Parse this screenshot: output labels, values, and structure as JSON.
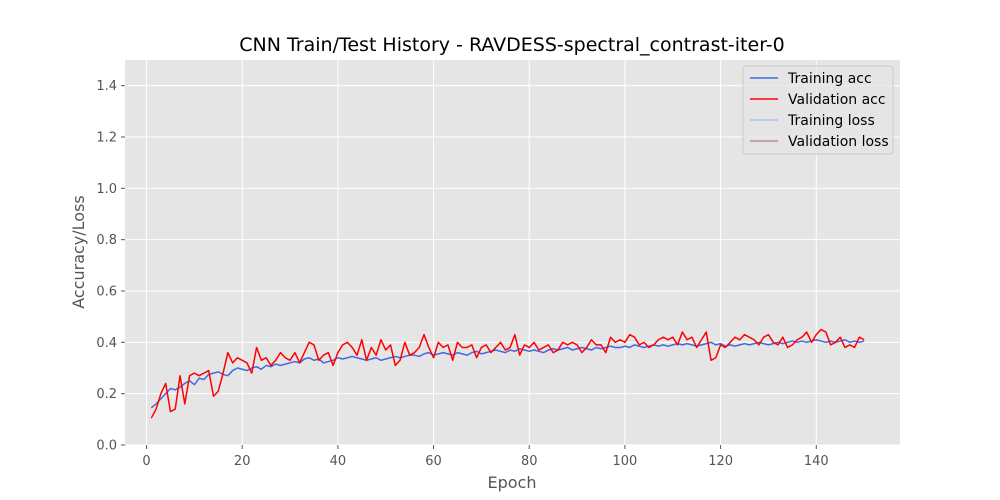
{
  "chart_data": {
    "type": "line",
    "title": "CNN Train/Test History -  RAVDESS-spectral_contrast-iter-0",
    "xlabel": "Epoch",
    "ylabel": "Accuracy/Loss",
    "xlim": [
      -4.5,
      157.5
    ],
    "ylim": [
      0.0,
      1.5
    ],
    "x_ticks": [
      0,
      20,
      40,
      60,
      80,
      100,
      120,
      140
    ],
    "y_ticks": [
      0.0,
      0.2,
      0.4,
      0.6,
      0.8,
      1.0,
      1.2,
      1.4
    ],
    "x_tick_labels": [
      "0",
      "20",
      "40",
      "60",
      "80",
      "100",
      "120",
      "140"
    ],
    "y_tick_labels": [
      "0.0",
      "0.2",
      "0.4",
      "0.6",
      "0.8",
      "1.0",
      "1.2",
      "1.4"
    ],
    "grid": true,
    "legend_position": "top-right",
    "background": "#e5e5e5",
    "x_start": 1,
    "series": [
      {
        "name": "Training acc",
        "color": "#4169e1",
        "values": [
          0.145,
          0.16,
          0.18,
          0.2,
          0.22,
          0.215,
          0.225,
          0.24,
          0.25,
          0.235,
          0.26,
          0.255,
          0.275,
          0.28,
          0.285,
          0.275,
          0.27,
          0.29,
          0.3,
          0.295,
          0.29,
          0.3,
          0.305,
          0.295,
          0.31,
          0.305,
          0.315,
          0.31,
          0.315,
          0.32,
          0.325,
          0.32,
          0.335,
          0.34,
          0.33,
          0.335,
          0.32,
          0.325,
          0.33,
          0.34,
          0.335,
          0.34,
          0.345,
          0.34,
          0.335,
          0.33,
          0.335,
          0.34,
          0.33,
          0.335,
          0.34,
          0.345,
          0.34,
          0.345,
          0.35,
          0.35,
          0.345,
          0.355,
          0.36,
          0.35,
          0.355,
          0.36,
          0.355,
          0.35,
          0.36,
          0.355,
          0.35,
          0.36,
          0.365,
          0.355,
          0.36,
          0.365,
          0.37,
          0.365,
          0.36,
          0.37,
          0.365,
          0.375,
          0.37,
          0.365,
          0.37,
          0.365,
          0.36,
          0.37,
          0.375,
          0.37,
          0.375,
          0.38,
          0.37,
          0.375,
          0.38,
          0.375,
          0.37,
          0.38,
          0.375,
          0.38,
          0.385,
          0.38,
          0.38,
          0.385,
          0.38,
          0.39,
          0.385,
          0.38,
          0.385,
          0.39,
          0.385,
          0.39,
          0.385,
          0.39,
          0.395,
          0.39,
          0.395,
          0.39,
          0.385,
          0.39,
          0.395,
          0.4,
          0.39,
          0.395,
          0.385,
          0.39,
          0.385,
          0.39,
          0.395,
          0.39,
          0.395,
          0.4,
          0.395,
          0.39,
          0.395,
          0.4,
          0.395,
          0.4,
          0.405,
          0.4,
          0.405,
          0.4,
          0.405,
          0.41,
          0.405,
          0.4,
          0.405,
          0.4,
          0.405,
          0.41,
          0.4,
          0.405,
          0.4,
          0.405
        ]
      },
      {
        "name": "Validation acc",
        "color": "#ff0000",
        "values": [
          0.105,
          0.14,
          0.2,
          0.24,
          0.13,
          0.14,
          0.27,
          0.16,
          0.27,
          0.28,
          0.27,
          0.28,
          0.29,
          0.19,
          0.21,
          0.28,
          0.36,
          0.32,
          0.34,
          0.33,
          0.32,
          0.28,
          0.38,
          0.33,
          0.34,
          0.31,
          0.33,
          0.36,
          0.34,
          0.33,
          0.36,
          0.32,
          0.36,
          0.4,
          0.39,
          0.33,
          0.35,
          0.36,
          0.31,
          0.36,
          0.39,
          0.4,
          0.38,
          0.35,
          0.41,
          0.33,
          0.38,
          0.35,
          0.41,
          0.37,
          0.39,
          0.31,
          0.33,
          0.4,
          0.35,
          0.36,
          0.38,
          0.43,
          0.38,
          0.34,
          0.4,
          0.38,
          0.39,
          0.33,
          0.4,
          0.38,
          0.38,
          0.39,
          0.34,
          0.38,
          0.39,
          0.36,
          0.38,
          0.4,
          0.37,
          0.38,
          0.43,
          0.35,
          0.39,
          0.38,
          0.4,
          0.37,
          0.38,
          0.39,
          0.36,
          0.37,
          0.4,
          0.39,
          0.4,
          0.39,
          0.36,
          0.38,
          0.41,
          0.39,
          0.39,
          0.36,
          0.42,
          0.4,
          0.41,
          0.4,
          0.43,
          0.42,
          0.39,
          0.4,
          0.38,
          0.39,
          0.41,
          0.42,
          0.41,
          0.42,
          0.39,
          0.44,
          0.41,
          0.42,
          0.38,
          0.41,
          0.44,
          0.33,
          0.34,
          0.39,
          0.38,
          0.4,
          0.42,
          0.41,
          0.43,
          0.42,
          0.41,
          0.39,
          0.42,
          0.43,
          0.4,
          0.39,
          0.42,
          0.38,
          0.39,
          0.41,
          0.42,
          0.44,
          0.4,
          0.43,
          0.45,
          0.44,
          0.39,
          0.4,
          0.42,
          0.38,
          0.39,
          0.38,
          0.42,
          0.41
        ]
      },
      {
        "name": "Training loss",
        "color": "#aec7e8",
        "values": []
      },
      {
        "name": "Validation loss",
        "color": "#bc8f8f",
        "values": []
      }
    ]
  }
}
